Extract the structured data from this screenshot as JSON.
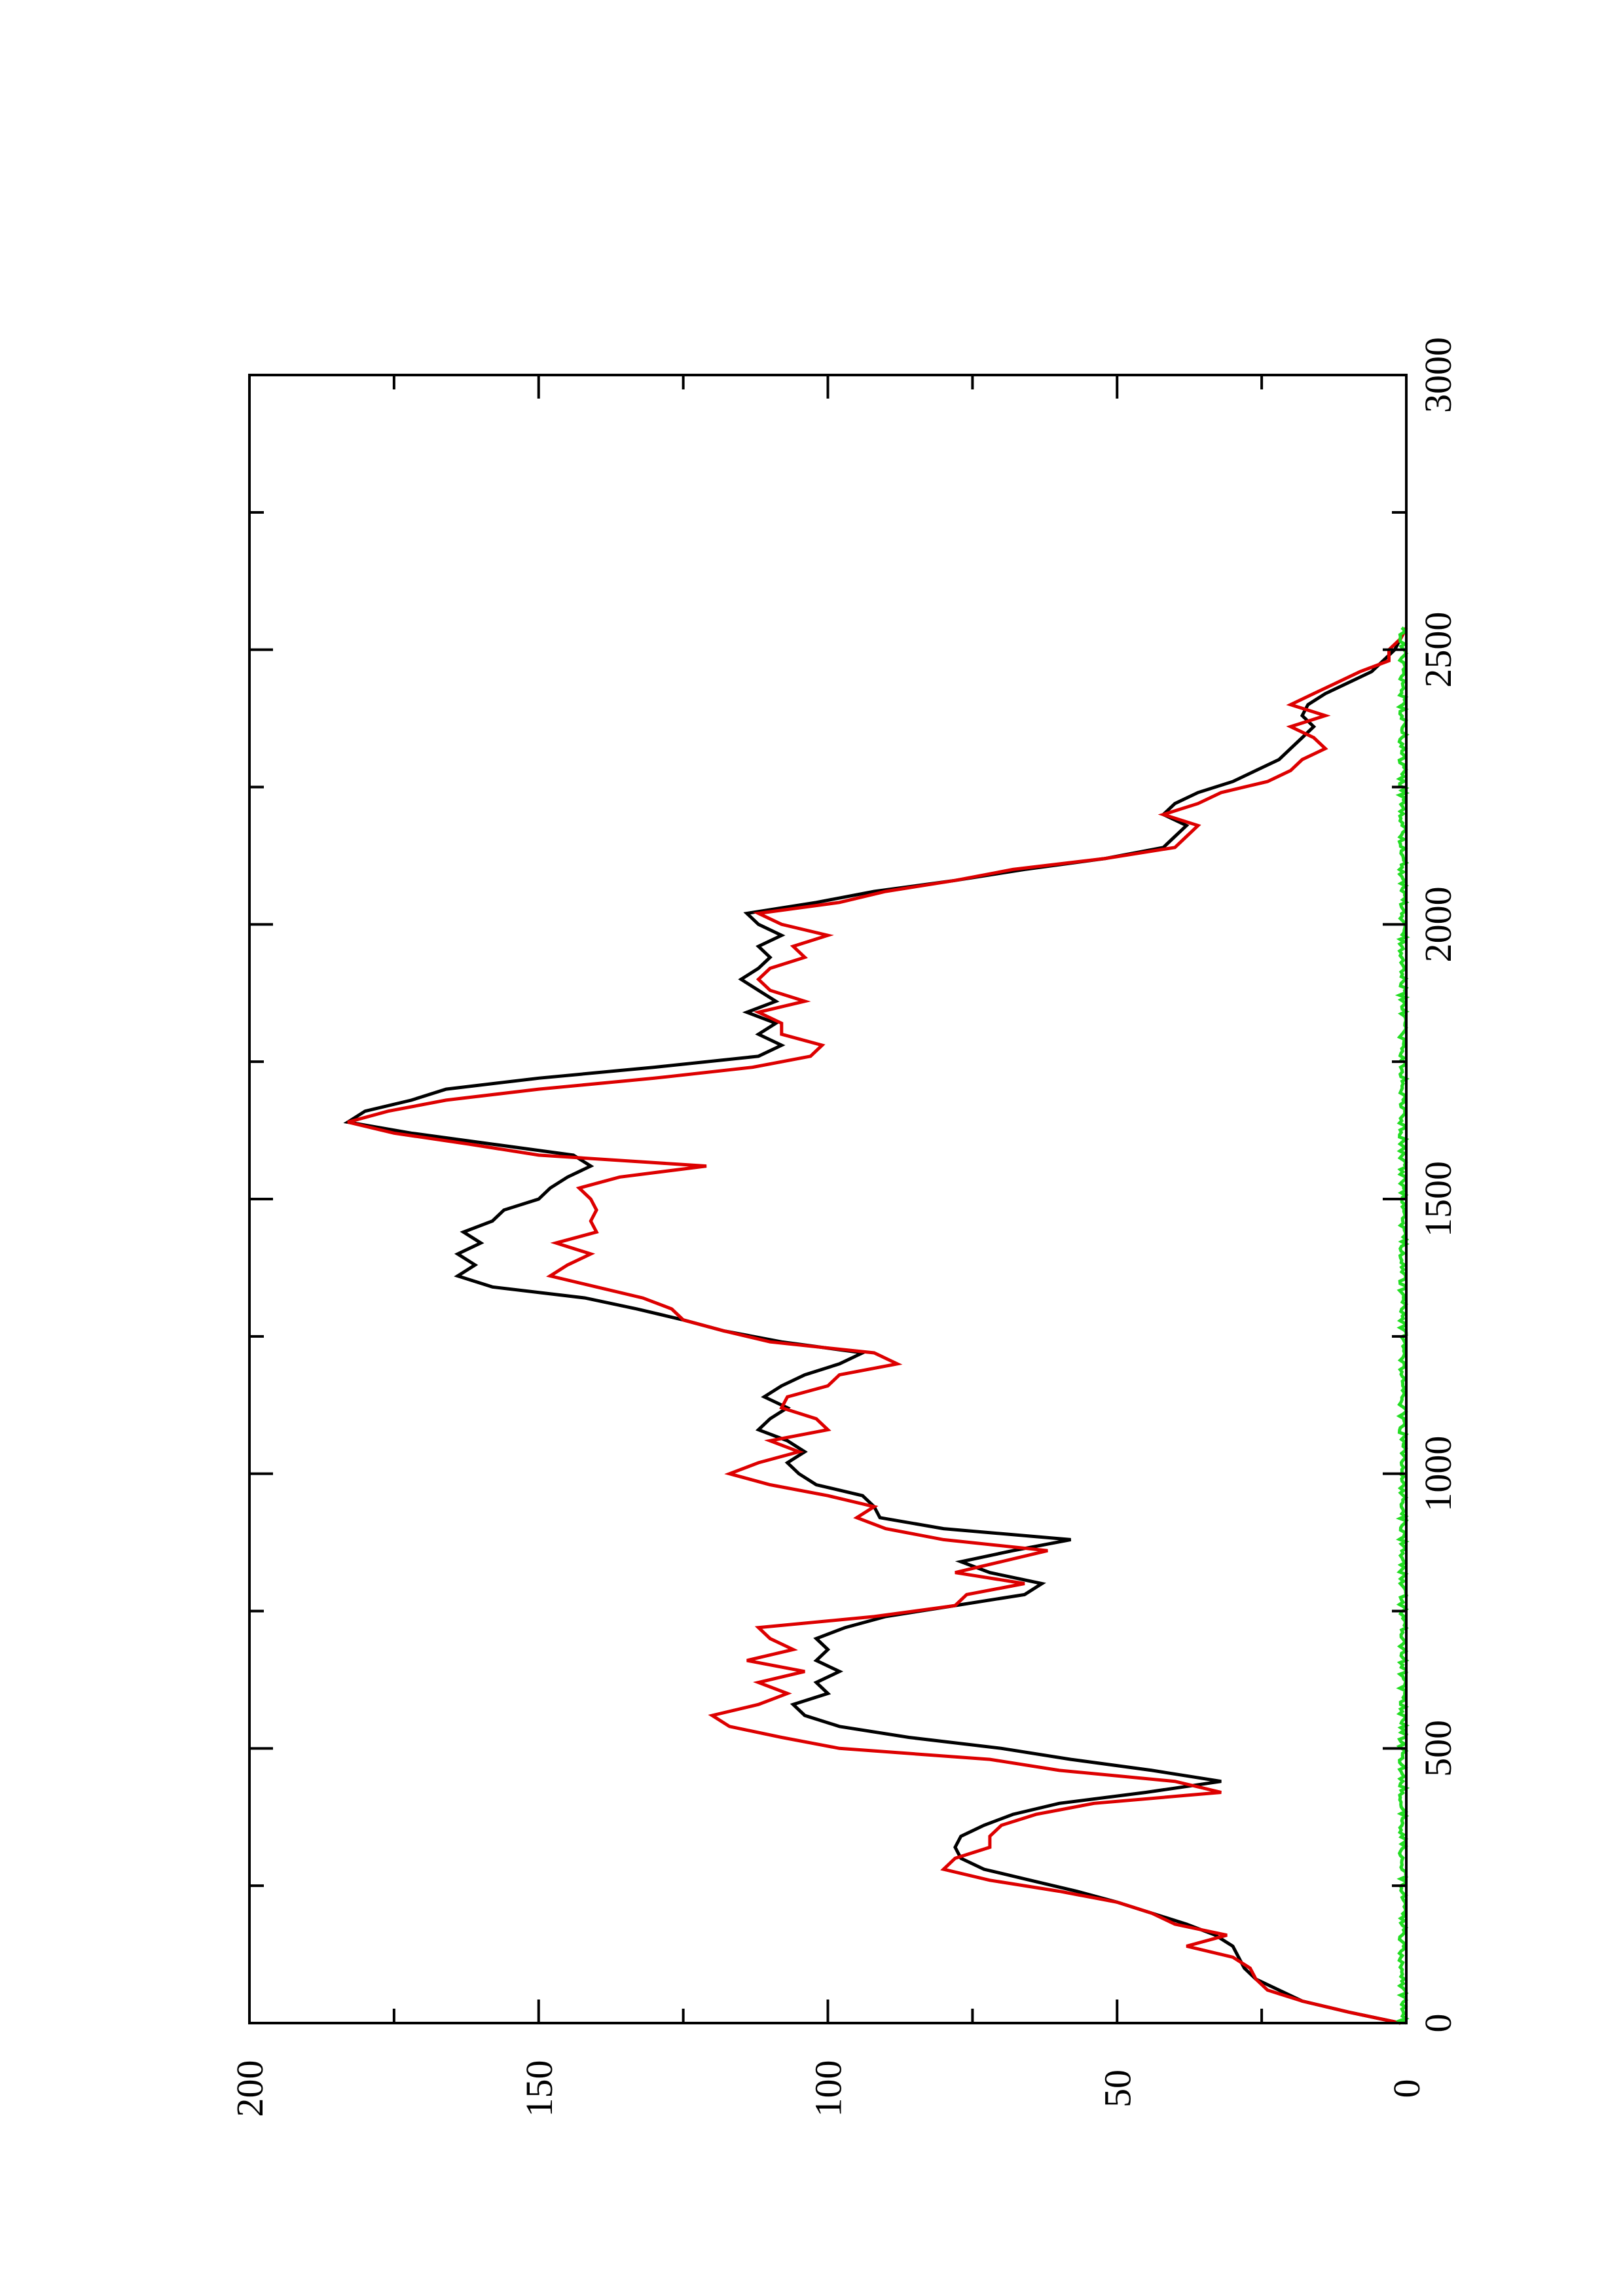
{
  "chart_data": {
    "type": "line",
    "title": "",
    "xlabel": "",
    "ylabel": "",
    "xlim": [
      0,
      3000
    ],
    "ylim": [
      0,
      200
    ],
    "x_ticks": [
      0,
      500,
      1000,
      1500,
      2000,
      2500,
      3000
    ],
    "y_ticks": [
      0,
      50,
      100,
      150,
      200
    ],
    "x_tick_labels": [
      "0",
      "500",
      "1000",
      "1500",
      "2000",
      "2500",
      "3000"
    ],
    "y_tick_labels": [
      "0",
      "50",
      "100",
      "150",
      "200"
    ],
    "orientation": "rotated 90 degrees counter-clockwise (x axis vertical, increasing upward; y axis horizontal, increasing leftward)",
    "grid": false,
    "legend": "none",
    "series": [
      {
        "color": "#000000",
        "x": [
          0,
          20,
          40,
          60,
          80,
          100,
          120,
          140,
          160,
          180,
          200,
          220,
          240,
          260,
          280,
          300,
          320,
          340,
          360,
          380,
          400,
          420,
          440,
          460,
          480,
          500,
          520,
          540,
          560,
          580,
          600,
          620,
          640,
          660,
          680,
          700,
          720,
          740,
          760,
          780,
          800,
          820,
          840,
          860,
          880,
          900,
          920,
          940,
          960,
          980,
          1000,
          1020,
          1040,
          1060,
          1080,
          1100,
          1120,
          1140,
          1160,
          1180,
          1200,
          1220,
          1240,
          1260,
          1280,
          1300,
          1320,
          1340,
          1360,
          1380,
          1400,
          1420,
          1440,
          1460,
          1480,
          1500,
          1520,
          1540,
          1560,
          1580,
          1600,
          1620,
          1640,
          1660,
          1680,
          1700,
          1720,
          1740,
          1760,
          1780,
          1800,
          1820,
          1840,
          1860,
          1880,
          1900,
          1920,
          1940,
          1960,
          1980,
          2000,
          2020,
          2040,
          2060,
          2080,
          2100,
          2120,
          2140,
          2160,
          2180,
          2200,
          2220,
          2240,
          2260,
          2280,
          2300,
          2320,
          2340,
          2360,
          2380,
          2400,
          2420,
          2440,
          2460,
          2480,
          2500,
          2520,
          2540
        ],
        "y": [
          1,
          10,
          18,
          22,
          26,
          28,
          29,
          30,
          33,
          38,
          44,
          50,
          57,
          65,
          73,
          77,
          78,
          77,
          73,
          68,
          60,
          45,
          32,
          44,
          58,
          70,
          86,
          98,
          104,
          106,
          100,
          102,
          98,
          102,
          100,
          102,
          97,
          90,
          78,
          66,
          63,
          72,
          77,
          68,
          58,
          80,
          91,
          92,
          94,
          102,
          105,
          107,
          104,
          107,
          112,
          110,
          107,
          111,
          108,
          104,
          98,
          94,
          108,
          118,
          125,
          133,
          142,
          158,
          164,
          161,
          164,
          160,
          163,
          158,
          156,
          150,
          148,
          145,
          141,
          144,
          158,
          172,
          183,
          180,
          172,
          166,
          150,
          130,
          112,
          108,
          112,
          109,
          114,
          109,
          112,
          115,
          112,
          110,
          112,
          108,
          112,
          114,
          102,
          92,
          78,
          66,
          52,
          42,
          40,
          38,
          42,
          40,
          36,
          30,
          26,
          22,
          20,
          18,
          16,
          18,
          17,
          14,
          10,
          6,
          4,
          2,
          1,
          0
        ]
      },
      {
        "color": "#dd0000",
        "x": [
          0,
          20,
          40,
          60,
          80,
          100,
          120,
          140,
          160,
          180,
          200,
          220,
          240,
          260,
          280,
          300,
          320,
          340,
          360,
          380,
          400,
          420,
          440,
          460,
          480,
          500,
          520,
          540,
          560,
          580,
          600,
          620,
          640,
          660,
          680,
          700,
          720,
          740,
          760,
          780,
          800,
          820,
          840,
          860,
          880,
          900,
          920,
          940,
          960,
          980,
          1000,
          1020,
          1040,
          1060,
          1080,
          1100,
          1120,
          1140,
          1160,
          1180,
          1200,
          1220,
          1240,
          1260,
          1280,
          1300,
          1320,
          1340,
          1360,
          1380,
          1400,
          1420,
          1440,
          1460,
          1480,
          1500,
          1520,
          1540,
          1560,
          1580,
          1600,
          1620,
          1640,
          1660,
          1680,
          1700,
          1720,
          1740,
          1760,
          1780,
          1800,
          1820,
          1840,
          1860,
          1880,
          1900,
          1920,
          1940,
          1960,
          1980,
          2000,
          2020,
          2040,
          2060,
          2080,
          2100,
          2120,
          2140,
          2160,
          2180,
          2200,
          2220,
          2240,
          2260,
          2280,
          2300,
          2320,
          2340,
          2360,
          2380,
          2400,
          2420,
          2440,
          2460,
          2480,
          2500,
          2520,
          2540
        ],
        "y": [
          1,
          10,
          18,
          24,
          26,
          27,
          30,
          38,
          31,
          40,
          44,
          50,
          60,
          72,
          80,
          78,
          72,
          72,
          70,
          64,
          54,
          32,
          40,
          60,
          72,
          98,
          108,
          117,
          120,
          112,
          107,
          112,
          104,
          114,
          106,
          110,
          112,
          92,
          78,
          76,
          66,
          78,
          70,
          62,
          80,
          90,
          95,
          92,
          100,
          110,
          117,
          112,
          105,
          110,
          100,
          102,
          108,
          107,
          100,
          98,
          88,
          92,
          110,
          118,
          125,
          127,
          132,
          140,
          148,
          145,
          141,
          147,
          140,
          141,
          140,
          141,
          143,
          136,
          121,
          150,
          162,
          175,
          183,
          176,
          166,
          150,
          130,
          113,
          103,
          101,
          108,
          108,
          112,
          104,
          110,
          112,
          110,
          104,
          106,
          100,
          108,
          112,
          98,
          90,
          78,
          68,
          52,
          40,
          38,
          36,
          42,
          36,
          32,
          24,
          20,
          18,
          14,
          16,
          20,
          14,
          20,
          16,
          12,
          8,
          3,
          3,
          1,
          0
        ]
      },
      {
        "color": "#22dd22",
        "x": [
          0,
          2540
        ],
        "y": [
          0,
          0
        ]
      }
    ]
  }
}
